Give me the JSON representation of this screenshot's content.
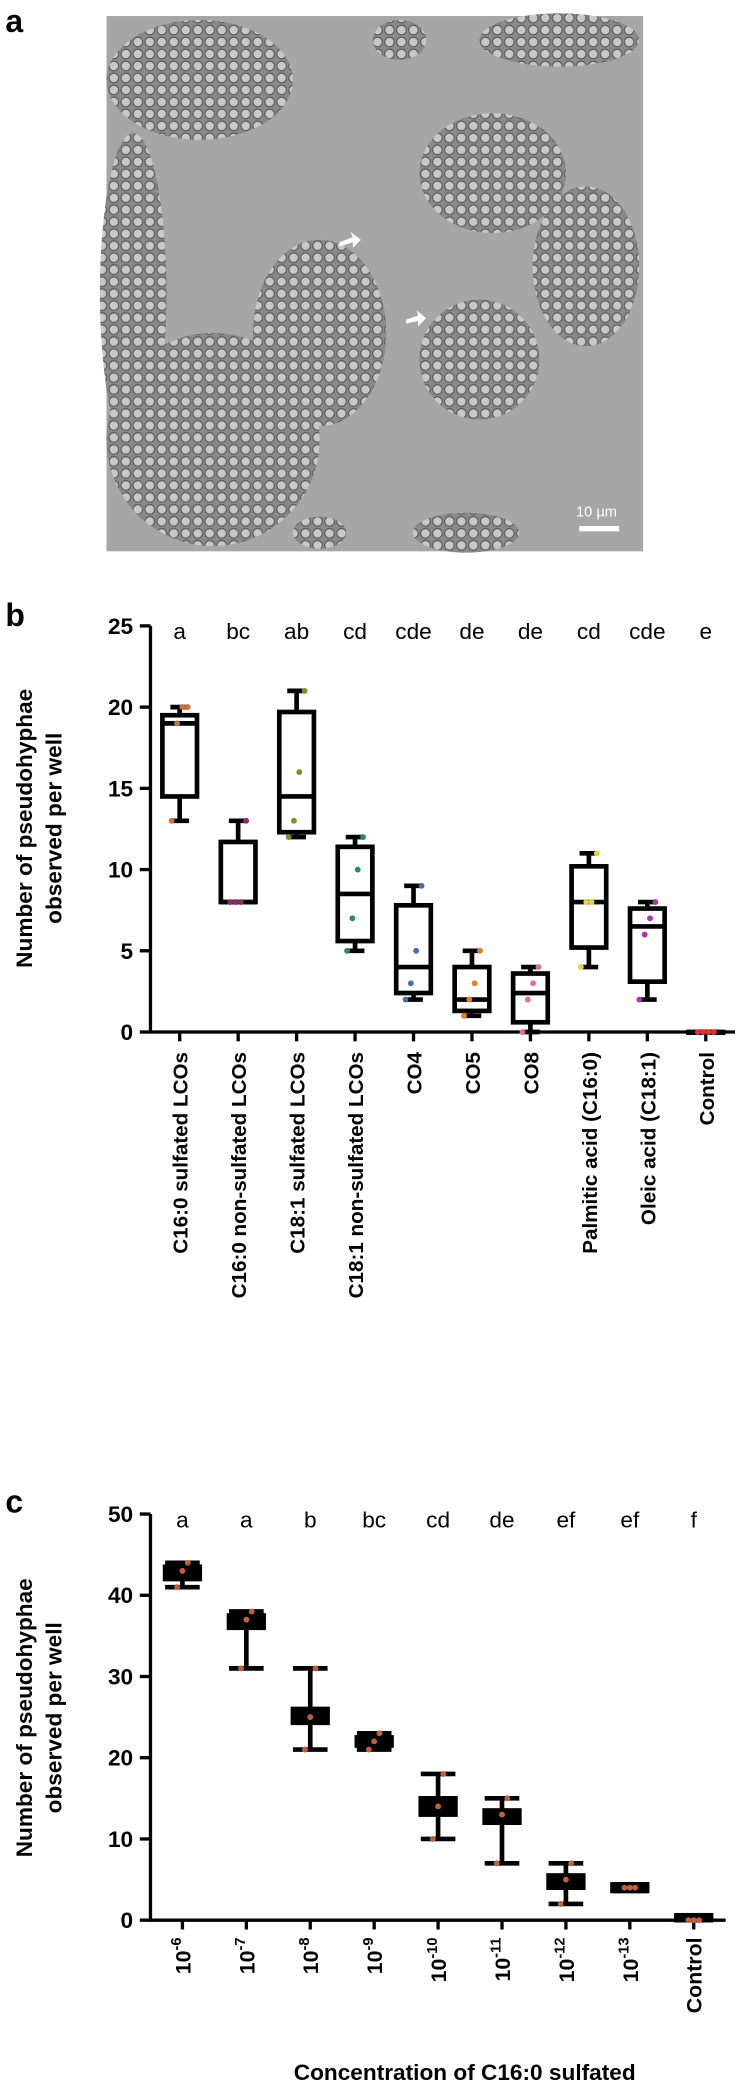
{
  "panel_a": {
    "label": "a",
    "scale_bar": "10 µm"
  },
  "chart_data": [
    {
      "type": "box",
      "panel_label": "b",
      "y_label": [
        "Number of pseudohyphae",
        "observed per well"
      ],
      "categories": [
        "C16:0 sulfated LCOs",
        "C16:0 non-sulfated LCOs",
        "C18:1 sulfated LCOs",
        "C18:1 non-sulfated LCOs",
        "CO4",
        "CO5",
        "CO8",
        "Palmitic acid (C16:0)",
        "Oleic acid (C18:1)",
        "Control"
      ],
      "letters": [
        "a",
        "bc",
        "ab",
        "cd",
        "cde",
        "de",
        "de",
        "cd",
        "cde",
        "e"
      ],
      "min": [
        13,
        8,
        12,
        5,
        2,
        1,
        0,
        4,
        2,
        0
      ],
      "q1": [
        14.5,
        8,
        12.3,
        5.6,
        2.4,
        1.3,
        0.6,
        5.2,
        3.1,
        0
      ],
      "median": [
        19,
        8,
        14.5,
        8.5,
        4,
        2,
        2.4,
        8,
        6.5,
        0
      ],
      "q3": [
        19.5,
        11.7,
        19.7,
        11.4,
        7.8,
        4,
        3.6,
        10.2,
        7.6,
        0
      ],
      "max": [
        20,
        13,
        21,
        12,
        9,
        5,
        4,
        11,
        8,
        0
      ],
      "points": [
        [
          13,
          19,
          20,
          20
        ],
        [
          8,
          8,
          8,
          13
        ],
        [
          12,
          13,
          16,
          21
        ],
        [
          5,
          7,
          10,
          12
        ],
        [
          2,
          3,
          5,
          9
        ],
        [
          1,
          2,
          3,
          5
        ],
        [
          0,
          2,
          3,
          4
        ],
        [
          4,
          8,
          8,
          11
        ],
        [
          2,
          6,
          7,
          8
        ],
        [
          0,
          0,
          0,
          0
        ]
      ],
      "point_colors": [
        "#c8733a",
        "#8b2a6b",
        "#8a8a2a",
        "#2a8a6a",
        "#4a6ab0",
        "#e08020",
        "#e07090",
        "#e8d040",
        "#b030b0",
        "#e03030"
      ],
      "box_fill": "#ffffff",
      "ylim": [
        0,
        25
      ],
      "yticks": [
        0,
        5,
        10,
        15,
        20,
        25
      ]
    },
    {
      "type": "box",
      "panel_label": "c",
      "y_label": [
        "Number of pseudohyphae",
        "observed per well"
      ],
      "x_label": "Concentration of C16:0 sulfated",
      "categories": [
        {
          "text": "10",
          "sup": "-6"
        },
        {
          "text": "10",
          "sup": "-7"
        },
        {
          "text": "10",
          "sup": "-8"
        },
        {
          "text": "10",
          "sup": "-9"
        },
        {
          "text": "10",
          "sup": "-10"
        },
        {
          "text": "10",
          "sup": "-11"
        },
        {
          "text": "10",
          "sup": "-12"
        },
        {
          "text": "10",
          "sup": "-13"
        },
        {
          "text": "Control"
        }
      ],
      "letters": [
        "a",
        "a",
        "b",
        "bc",
        "cd",
        "de",
        "ef",
        "ef",
        "f"
      ],
      "min": [
        41,
        31,
        21,
        21,
        10,
        7,
        2,
        3.6,
        0
      ],
      "q1": [
        42,
        36,
        24.3,
        21.5,
        13,
        12,
        4,
        3.6,
        0
      ],
      "median": [
        43,
        37,
        25,
        22,
        14,
        13,
        5,
        4,
        0.3
      ],
      "q3": [
        43.5,
        37.5,
        26,
        22.5,
        15,
        13.5,
        5.5,
        4.4,
        0.6
      ],
      "max": [
        44,
        38,
        31,
        23,
        18,
        15,
        7,
        4.4,
        0.6
      ],
      "points": [
        [
          41,
          43,
          44
        ],
        [
          31,
          37,
          38
        ],
        [
          21,
          25,
          31
        ],
        [
          21,
          22,
          23
        ],
        [
          10,
          14,
          18
        ],
        [
          7,
          13,
          15
        ],
        [
          2,
          5,
          7
        ],
        [
          4,
          4,
          4
        ],
        [
          0,
          0,
          0
        ]
      ],
      "point_colors": [
        "#c0603a",
        "#c0603a",
        "#c0603a",
        "#c0603a",
        "#c0603a",
        "#c0603a",
        "#c0603a",
        "#c0603a",
        "#c0603a"
      ],
      "box_fill": "#000000",
      "ylim": [
        0,
        50
      ],
      "yticks": [
        0,
        10,
        20,
        30,
        40,
        50
      ]
    }
  ]
}
